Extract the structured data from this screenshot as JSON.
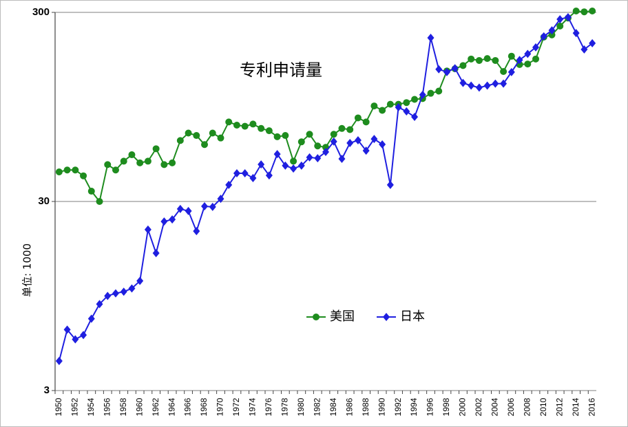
{
  "chart_data": {
    "type": "line",
    "title": "专利申请量",
    "y_label": "单位: 1000",
    "categories": [
      "1950",
      null,
      "1952",
      null,
      "1954",
      null,
      "1956",
      null,
      "1958",
      null,
      "1960",
      null,
      "1962",
      null,
      "1964",
      null,
      "1966",
      null,
      "1968",
      null,
      "1970",
      null,
      "1972",
      null,
      "1974",
      null,
      "1976",
      null,
      "1978",
      null,
      "1980",
      null,
      "1982",
      null,
      "1984",
      null,
      "1986",
      null,
      "1988",
      null,
      "1990",
      null,
      "1992",
      null,
      "1994",
      null,
      "1996",
      null,
      "1998",
      null,
      "2000",
      null,
      "2002",
      null,
      "2004",
      null,
      "2006",
      null,
      "2008",
      null,
      "2010",
      null,
      "2012",
      null,
      "2014",
      null,
      "2016"
    ],
    "series": [
      {
        "name": "美国",
        "color": "#1e8c1e",
        "marker": "circle",
        "values": [
          43,
          44,
          44,
          41,
          34,
          30,
          47,
          44,
          49,
          53,
          48,
          49,
          57,
          47,
          48,
          63,
          69,
          67,
          60,
          69,
          65,
          79,
          76,
          75,
          77,
          73,
          71,
          66,
          67,
          49,
          62,
          68,
          59,
          58,
          68,
          73,
          72,
          83,
          79,
          96,
          91,
          98,
          98,
          100,
          104,
          105,
          112,
          115,
          147,
          151,
          157,
          170,
          167,
          171,
          167,
          146,
          176,
          159,
          160,
          170,
          222,
          228,
          254,
          280,
          305,
          302,
          305
        ]
      },
      {
        "name": "日本",
        "color": "#1f1fe0",
        "marker": "diamond",
        "values": [
          4.3,
          6.3,
          5.6,
          5.9,
          7.2,
          8.6,
          9.5,
          9.8,
          10,
          10.4,
          11.4,
          21.3,
          16,
          23.5,
          24.1,
          27.4,
          26.7,
          20.9,
          28.3,
          28.1,
          31,
          36.7,
          42.3,
          42.3,
          39.9,
          47.1,
          41.2,
          53.4,
          46.4,
          44.8,
          46.4,
          51.3,
          50.8,
          54.8,
          62.2,
          50.4,
          61.1,
          63.2,
          55.7,
          64.2,
          60.1,
          36.7,
          94.5,
          89.8,
          84,
          110,
          220,
          150,
          145,
          152,
          127,
          123,
          120,
          123,
          126,
          126,
          145,
          168,
          181,
          196,
          224,
          241,
          276,
          283,
          233,
          191,
          206
        ]
      }
    ],
    "y_scale": "log",
    "ylim": [
      3,
      300
    ],
    "yticks": [
      3,
      30,
      300
    ],
    "grid": true,
    "legend": "center"
  }
}
